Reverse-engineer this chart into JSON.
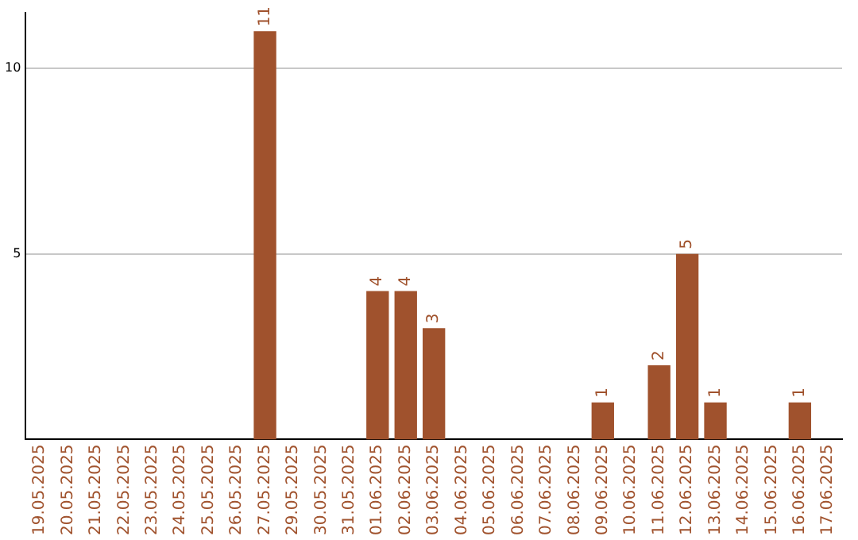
{
  "chart_data": {
    "type": "bar",
    "categories": [
      "19.05.2025",
      "20.05.2025",
      "21.05.2025",
      "22.05.2025",
      "23.05.2025",
      "24.05.2025",
      "25.05.2025",
      "26.05.2025",
      "27.05.2025",
      "29.05.2025",
      "30.05.2025",
      "31.05.2025",
      "01.06.2025",
      "02.06.2025",
      "03.06.2025",
      "04.06.2025",
      "05.06.2025",
      "06.06.2025",
      "07.06.2025",
      "08.06.2025",
      "09.06.2025",
      "10.06.2025",
      "11.06.2025",
      "12.06.2025",
      "13.06.2025",
      "14.06.2025",
      "15.06.2025",
      "16.06.2025",
      "17.06.2025"
    ],
    "values": [
      0,
      0,
      0,
      0,
      0,
      0,
      0,
      0,
      11,
      0,
      0,
      0,
      4,
      4,
      3,
      0,
      0,
      0,
      0,
      0,
      1,
      0,
      2,
      5,
      1,
      0,
      0,
      1,
      0
    ],
    "value_labels": [
      null,
      null,
      null,
      null,
      null,
      null,
      null,
      null,
      "11",
      null,
      null,
      null,
      "4",
      "4",
      "3",
      null,
      null,
      null,
      null,
      null,
      "1",
      null,
      "2",
      "5",
      "1",
      null,
      null,
      "1",
      null
    ],
    "color": "#a0522d",
    "ylim": [
      0,
      11.5
    ],
    "yticks": [
      5,
      10
    ],
    "grid": "y",
    "legend": false
  }
}
